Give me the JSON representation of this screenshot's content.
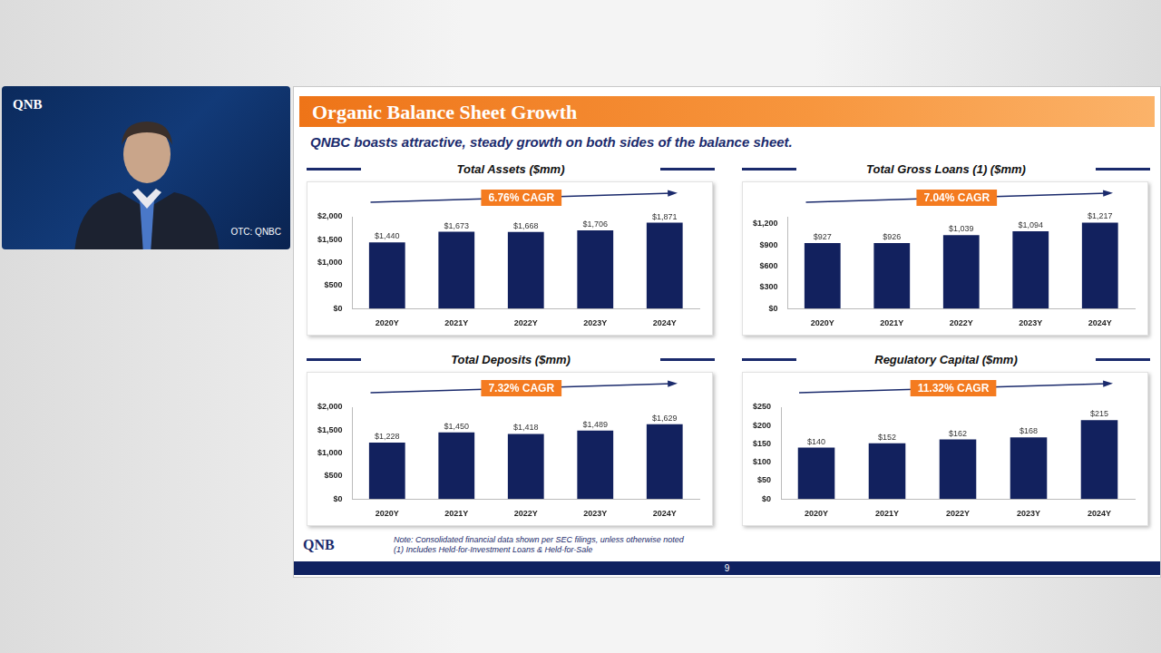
{
  "video": {
    "logo": "QNB",
    "ticker": "OTC: QNBC"
  },
  "slide": {
    "title": "Organic Balance Sheet Growth",
    "subtitle": "QNBC boasts attractive, steady growth on both sides of the balance sheet.",
    "logo": "QNB",
    "notes": [
      "Note: Consolidated financial data shown per SEC filings, unless otherwise noted",
      "(1) Includes Held-for-Investment Loans & Held-for-Sale"
    ],
    "page": "9"
  },
  "chart_data": [
    {
      "type": "bar",
      "title": "Total Assets ($mm)",
      "annotation": "6.76% CAGR",
      "categories": [
        "2020Y",
        "2021Y",
        "2022Y",
        "2023Y",
        "2024Y"
      ],
      "values": [
        1440,
        1673,
        1668,
        1706,
        1871
      ],
      "value_labels": [
        "$1,440",
        "$1,673",
        "$1,668",
        "$1,706",
        "$1,871"
      ],
      "color": "#12215e",
      "data_labels": true,
      "grid": false,
      "ylim": [
        0,
        2000
      ],
      "yticks": [
        {
          "value": 0,
          "label": "$0"
        },
        {
          "value": 500,
          "label": "$500"
        },
        {
          "value": 1000,
          "label": "$1,000"
        },
        {
          "value": 1500,
          "label": "$1,500"
        },
        {
          "value": 2000,
          "label": "$2,000"
        }
      ]
    },
    {
      "type": "bar",
      "title": "Total Gross Loans (1) ($mm)",
      "annotation": "7.04% CAGR",
      "categories": [
        "2020Y",
        "2021Y",
        "2022Y",
        "2023Y",
        "2024Y"
      ],
      "values": [
        927,
        926,
        1039,
        1094,
        1217
      ],
      "value_labels": [
        "$927",
        "$926",
        "$1,039",
        "$1,094",
        "$1,217"
      ],
      "color": "#12215e",
      "data_labels": true,
      "grid": false,
      "ylim": [
        0,
        1300
      ],
      "yticks": [
        {
          "value": 0,
          "label": "$0"
        },
        {
          "value": 300,
          "label": "$300"
        },
        {
          "value": 600,
          "label": "$600"
        },
        {
          "value": 900,
          "label": "$900"
        },
        {
          "value": 1200,
          "label": "$1,200"
        }
      ]
    },
    {
      "type": "bar",
      "title": "Total Deposits ($mm)",
      "annotation": "7.32% CAGR",
      "categories": [
        "2020Y",
        "2021Y",
        "2022Y",
        "2023Y",
        "2024Y"
      ],
      "values": [
        1228,
        1450,
        1418,
        1489,
        1629
      ],
      "value_labels": [
        "$1,228",
        "$1,450",
        "$1,418",
        "$1,489",
        "$1,629"
      ],
      "color": "#12215e",
      "data_labels": true,
      "grid": false,
      "ylim": [
        0,
        2000
      ],
      "yticks": [
        {
          "value": 0,
          "label": "$0"
        },
        {
          "value": 500,
          "label": "$500"
        },
        {
          "value": 1000,
          "label": "$1,000"
        },
        {
          "value": 1500,
          "label": "$1,500"
        },
        {
          "value": 2000,
          "label": "$2,000"
        }
      ]
    },
    {
      "type": "bar",
      "title": "Regulatory Capital ($mm)",
      "annotation": "11.32% CAGR",
      "categories": [
        "2020Y",
        "2021Y",
        "2022Y",
        "2023Y",
        "2024Y"
      ],
      "values": [
        140,
        152,
        162,
        168,
        215
      ],
      "value_labels": [
        "$140",
        "$152",
        "$162",
        "$168",
        "$215"
      ],
      "color": "#12215e",
      "data_labels": true,
      "grid": false,
      "ylim": [
        0,
        250
      ],
      "yticks": [
        {
          "value": 0,
          "label": "$0"
        },
        {
          "value": 50,
          "label": "$50"
        },
        {
          "value": 100,
          "label": "$100"
        },
        {
          "value": 150,
          "label": "$150"
        },
        {
          "value": 200,
          "label": "$200"
        },
        {
          "value": 250,
          "label": "$250"
        }
      ]
    }
  ]
}
